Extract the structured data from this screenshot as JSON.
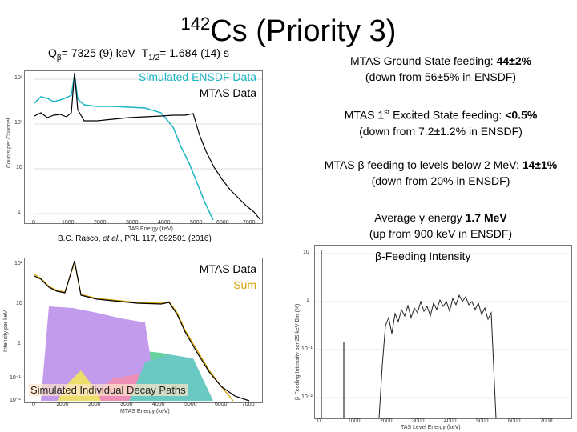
{
  "header": {
    "isotope_mass": "142",
    "isotope_rest": "Cs (Priority 3)",
    "q_prefix": "Q",
    "q_beta_symbol": "β",
    "q_value": "= 7325 (9) keV",
    "t_prefix": "T",
    "t_sub": "1/2",
    "t_value": "= 1.684 (14) s"
  },
  "plot1": {
    "legend_sim": "Simulated ENSDF Data",
    "legend_mtas": "MTAS Data",
    "ylabel": "Counts per Channel",
    "xlabel": "TAS Energy (keV)",
    "yticks": [
      "10³",
      "10²",
      "10",
      "1"
    ],
    "xticks": [
      "0",
      "1000",
      "2000",
      "3000",
      "4000",
      "5000",
      "6000",
      "7000"
    ]
  },
  "citation": {
    "pre": "B.C. Rasco, ",
    "etal": "et al.",
    "post": ", PRL 117, 092501 (2016)"
  },
  "plot2": {
    "legend_mtas": "MTAS Data",
    "legend_sum": "Sum",
    "sim_label": "Simulated Individual Decay Paths",
    "ylabel": "Intensity per keV",
    "xlabel": "MTAS Energy (keV)",
    "yticks": [
      "10²",
      "10",
      "1",
      "10⁻¹",
      "10⁻²"
    ],
    "xticks": [
      "0",
      "1000",
      "2000",
      "3000",
      "4000",
      "5000",
      "6000",
      "7000"
    ]
  },
  "notes": {
    "gs_label": "MTAS Ground State feeding: ",
    "gs_value": "44±2%",
    "gs_sub": "(down from 56±5% in ENSDF)",
    "ex_label_pre": "MTAS 1",
    "ex_label_sup": "st",
    "ex_label_post": " Excited State feeding: ",
    "ex_value": "<0.5%",
    "ex_sub": "(down from 7.2±1.2% in ENSDF)",
    "beta_pre": "MTAS ",
    "beta_symbol": "β",
    "beta_mid": " feeding to levels below 2 MeV: ",
    "beta_value": "14±1%",
    "beta_sub": "(down from 20% in ENSDF)",
    "gamma_pre": "Average ",
    "gamma_symbol": "γ",
    "gamma_mid": " energy ",
    "gamma_value": "1.7 MeV",
    "gamma_sub": "(up from 900 keV in ENSDF)"
  },
  "plot3": {
    "title_symbol": "β",
    "title_rest": "-Feeding Intensity",
    "ylabel": "β-Feeding Intensity per 25 keV Bin (%)",
    "xlabel": "TAS Level Energy (keV)",
    "yticks": [
      "10",
      "1",
      "10⁻¹",
      "10⁻²"
    ],
    "xticks": [
      "0",
      "1000",
      "2000",
      "3000",
      "4000",
      "5000",
      "6000",
      "7000"
    ]
  },
  "colors": {
    "sim": "#1ab6c4",
    "mtas": "#000000",
    "sum": "#d4a300"
  }
}
